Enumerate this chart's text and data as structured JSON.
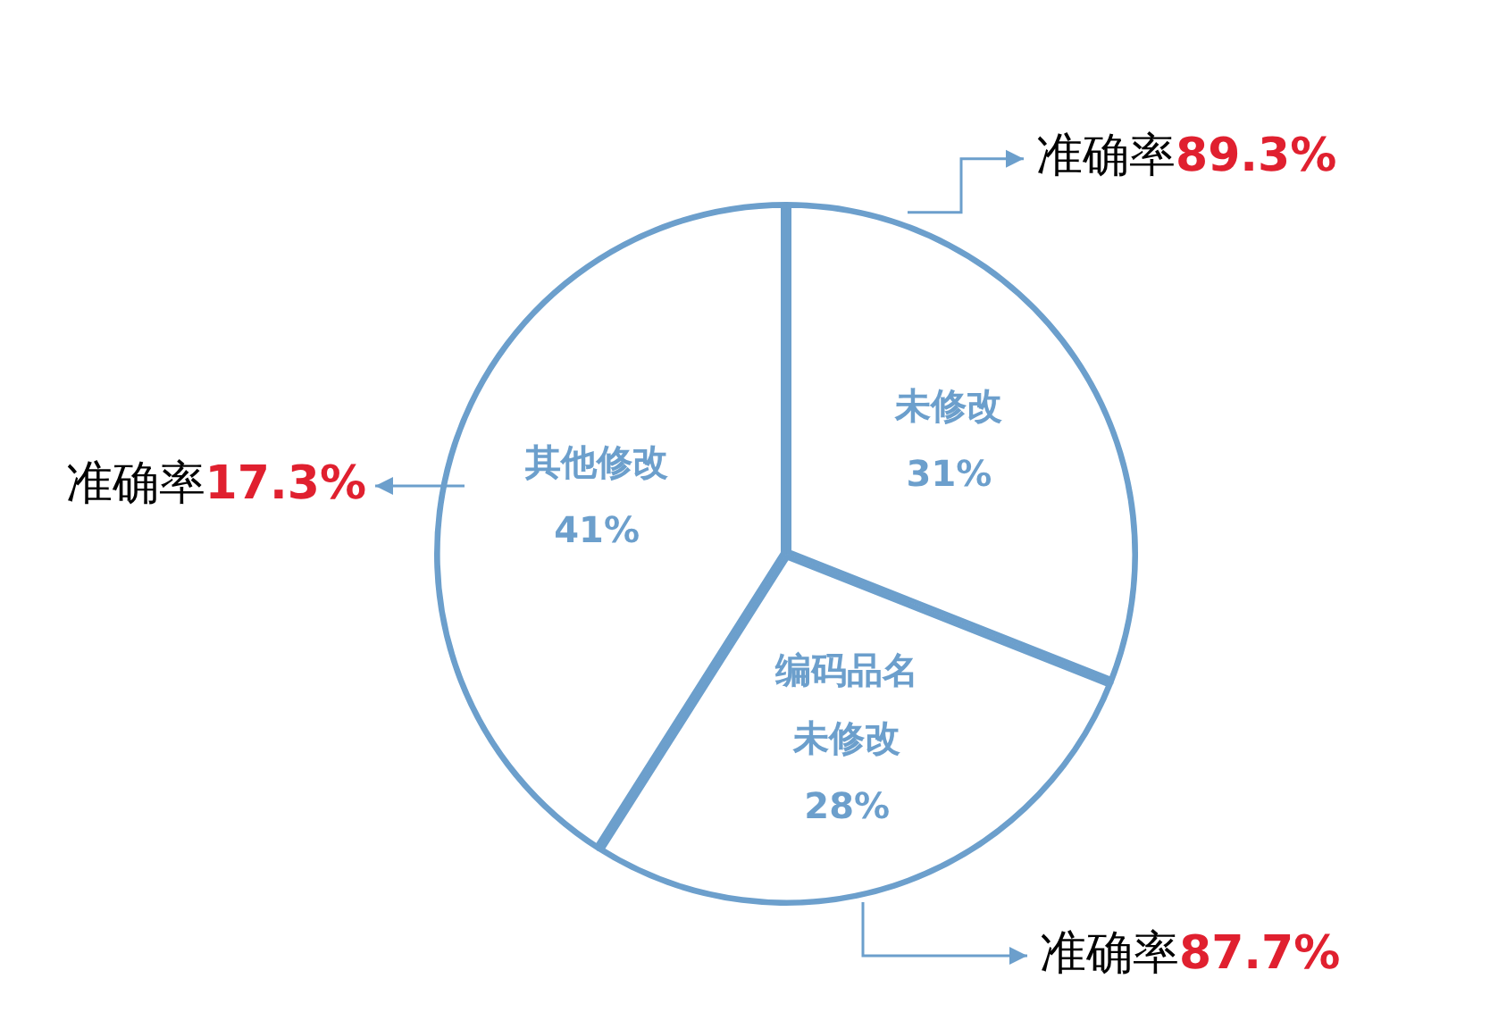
{
  "chart_data": {
    "type": "pie",
    "categories": [
      "未修改",
      "编码品名未修改",
      "其他修改"
    ],
    "values": [
      31,
      28,
      41
    ],
    "colors": [
      "#ffffff",
      "#ffffff",
      "#ffffff"
    ],
    "value_labels": [
      "31%",
      "28%",
      "41%"
    ],
    "legend": false,
    "annotations": [
      {
        "text": "准确率89.3%",
        "x": "未修改"
      },
      {
        "text": "准确率87.7%",
        "x": "编码品名未修改"
      },
      {
        "text": "准确率17.3%",
        "x": "其他修改"
      }
    ]
  }
}
